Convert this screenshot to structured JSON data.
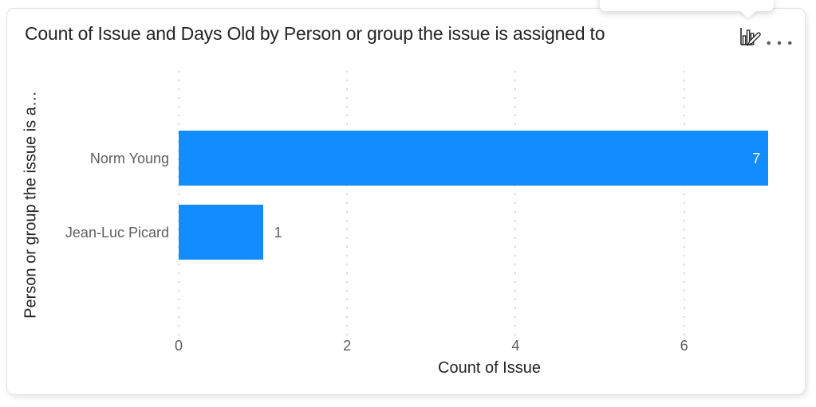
{
  "card": {
    "title": "Count of Issue and Days Old by Person or group the issue is assigned to",
    "toolbar": {
      "visual_type_icon": "bar-chart-edit-icon",
      "more_options_icon": "ellipsis-icon"
    }
  },
  "chart_data": {
    "type": "bar",
    "orientation": "horizontal",
    "title": "Count of Issue and Days Old by Person or group the issue is assigned to",
    "categories": [
      "Norm Young",
      "Jean-Luc Picard"
    ],
    "series": [
      {
        "name": "Count of Issue",
        "values": [
          7,
          1
        ]
      }
    ],
    "data_labels": [
      "7",
      "1"
    ],
    "data_label_positions": [
      "inside-end",
      "outside-end"
    ],
    "xlabel": "Count of Issue",
    "ylabel": "Person or group the issue is a…",
    "xlim": [
      0,
      7
    ],
    "xticks": [
      0,
      2,
      4,
      6
    ],
    "xtick_labels": [
      "0",
      "2",
      "4",
      "6"
    ],
    "grid": "dotted-vertical",
    "legend": "none",
    "colors": {
      "bar": "#118DFF",
      "label_inside": "#FFFFFF",
      "label_outside": "#605E5C",
      "axis_text": "#605E5C",
      "axis_title": "#252423",
      "title": "#252423",
      "gridline": "#D4D4D4"
    }
  }
}
